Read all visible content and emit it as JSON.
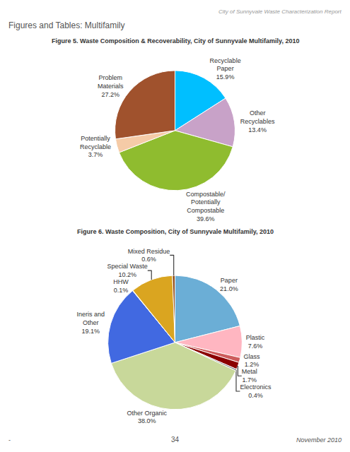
{
  "chart_data": [
    {
      "type": "pie",
      "title": "Figure 5. Waste Composition & Recoverability, City of Sunnyvale Multifamily, 2010",
      "annotations": [
        "City of Sunnyvale Waste Characterization Report",
        "Figures and Tables: Multifamily"
      ],
      "categories": [
        "Recyclable\nPaper",
        "Other\nRecyclables",
        "Compostable/\nPotentially\nCompostable",
        "Potentially\nRecyclable",
        "Problem\nMaterials"
      ],
      "values": [
        15.9,
        13.4,
        39.6,
        3.7,
        27.2
      ],
      "value_labels": [
        "15.9%",
        "13.4%",
        "39.6%",
        "3.7%",
        "27.2%"
      ],
      "colors": [
        "#00BFFF",
        "#C8A2C8",
        "#8FBC2F",
        "#F5CBA7",
        "#A0522D"
      ],
      "data_labels": true
    },
    {
      "type": "pie",
      "title": "Figure 6. Waste Composition, City of Sunnyvale Multifamily, 2010",
      "annotations": [
        "-",
        "34",
        "November 2010"
      ],
      "categories": [
        "Paper",
        "Plastic",
        "Glass",
        "Metal",
        "Electronics",
        "Other Organic",
        "Ineris and\nOther",
        "HHW",
        "Special Waste",
        "Mixed Residue"
      ],
      "values": [
        21.0,
        7.6,
        1.2,
        1.7,
        0.4,
        38.0,
        19.1,
        0.1,
        10.2,
        0.6
      ],
      "value_labels": [
        "21.0%",
        "7.6%",
        "1.2%",
        "1.7%",
        "0.4%",
        "38.0%",
        "19.1%",
        "0.1%",
        "10.2%",
        "0.6%"
      ],
      "colors": [
        "#6BAED6",
        "#FFB6C1",
        "#CD5C5C",
        "#8B0000",
        "#808080",
        "#C8D89A",
        "#4169E1",
        "#FFD700",
        "#DAA520",
        "#8B4513"
      ],
      "data_labels": true
    }
  ]
}
